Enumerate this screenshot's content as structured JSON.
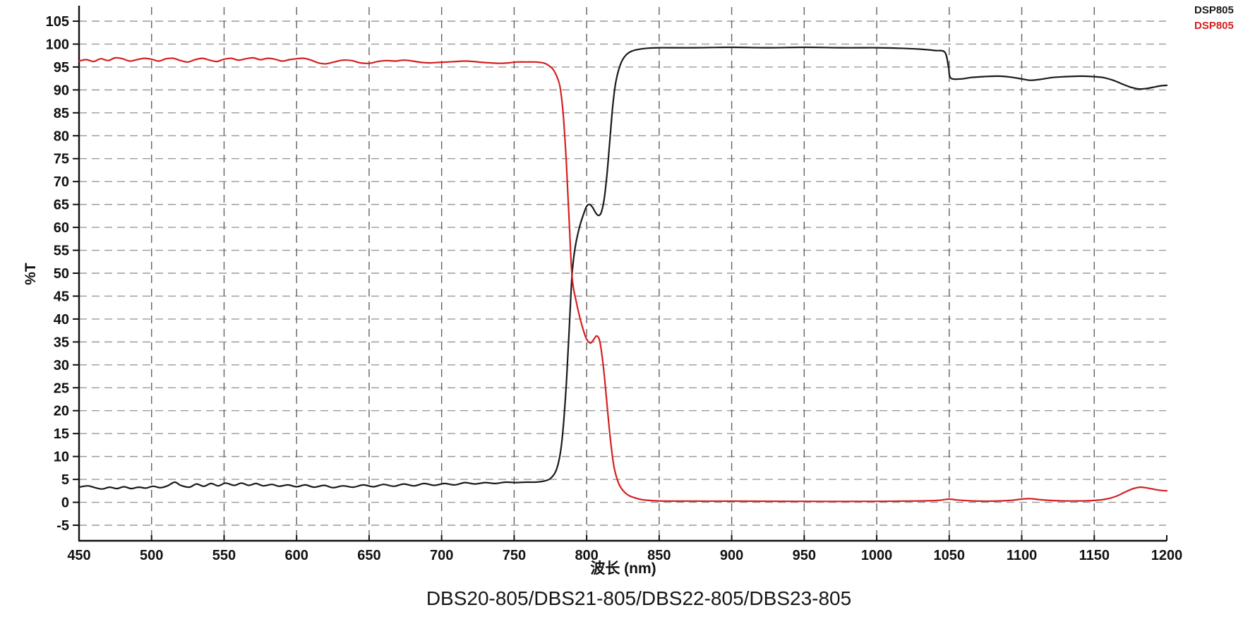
{
  "chart_data": {
    "type": "line",
    "title": "DBS20-805/DBS21-805/DBS22-805/DBS23-805",
    "xlabel": "波长 (nm)",
    "ylabel": "%T",
    "xlim": [
      450,
      1200
    ],
    "ylim": [
      -5,
      105
    ],
    "x_ticks": [
      450,
      500,
      550,
      600,
      650,
      700,
      750,
      800,
      850,
      900,
      950,
      1000,
      1050,
      1100,
      1150,
      1200
    ],
    "y_ticks": [
      105,
      100,
      95,
      90,
      85,
      80,
      75,
      70,
      65,
      60,
      55,
      50,
      45,
      40,
      35,
      30,
      25,
      20,
      15,
      10,
      5,
      0,
      -5
    ],
    "grid": "dashed",
    "grid_color_horizontal": "#9a9a9a",
    "grid_color_vertical": "#616161",
    "axis_color": "#111111",
    "legend": {
      "position": "top-right",
      "entries": [
        {
          "label": "DSP805",
          "color": "#1a1a1a"
        },
        {
          "label": "DSP805",
          "color": "#d42020"
        }
      ]
    },
    "series": [
      {
        "name": "DSP805",
        "color": "#1a1a1a",
        "points": [
          [
            450,
            3.3
          ],
          [
            456,
            3.6
          ],
          [
            461,
            3.2
          ],
          [
            466,
            2.9
          ],
          [
            471,
            3.3
          ],
          [
            476,
            3.0
          ],
          [
            481,
            3.4
          ],
          [
            486,
            3.0
          ],
          [
            491,
            3.3
          ],
          [
            496,
            3.1
          ],
          [
            501,
            3.5
          ],
          [
            506,
            3.2
          ],
          [
            511,
            3.6
          ],
          [
            516,
            4.4
          ],
          [
            520,
            3.7
          ],
          [
            526,
            3.3
          ],
          [
            531,
            4.0
          ],
          [
            536,
            3.5
          ],
          [
            541,
            4.1
          ],
          [
            546,
            3.6
          ],
          [
            551,
            4.2
          ],
          [
            557,
            3.7
          ],
          [
            562,
            4.2
          ],
          [
            567,
            3.7
          ],
          [
            572,
            4.1
          ],
          [
            577,
            3.6
          ],
          [
            583,
            3.9
          ],
          [
            588,
            3.5
          ],
          [
            594,
            3.8
          ],
          [
            600,
            3.4
          ],
          [
            606,
            3.8
          ],
          [
            612,
            3.3
          ],
          [
            619,
            3.7
          ],
          [
            625,
            3.2
          ],
          [
            632,
            3.6
          ],
          [
            639,
            3.3
          ],
          [
            646,
            3.8
          ],
          [
            653,
            3.4
          ],
          [
            660,
            3.9
          ],
          [
            667,
            3.5
          ],
          [
            674,
            4.0
          ],
          [
            681,
            3.6
          ],
          [
            688,
            4.1
          ],
          [
            695,
            3.7
          ],
          [
            702,
            4.1
          ],
          [
            709,
            3.8
          ],
          [
            716,
            4.3
          ],
          [
            723,
            4.0
          ],
          [
            730,
            4.3
          ],
          [
            737,
            4.1
          ],
          [
            744,
            4.4
          ],
          [
            751,
            4.3
          ],
          [
            758,
            4.4
          ],
          [
            764,
            4.4
          ],
          [
            770,
            4.6
          ],
          [
            775,
            5.2
          ],
          [
            779,
            7
          ],
          [
            782,
            11
          ],
          [
            784,
            17
          ],
          [
            786,
            26
          ],
          [
            788,
            38
          ],
          [
            790,
            50
          ],
          [
            792,
            55.5
          ],
          [
            795,
            60
          ],
          [
            798,
            63
          ],
          [
            800,
            64.6
          ],
          [
            802,
            65
          ],
          [
            804,
            64.4
          ],
          [
            806,
            63.3
          ],
          [
            808,
            62.6
          ],
          [
            810,
            63.2
          ],
          [
            812,
            66
          ],
          [
            814,
            71.5
          ],
          [
            816,
            79
          ],
          [
            818,
            86.5
          ],
          [
            820,
            91.5
          ],
          [
            823,
            95.3
          ],
          [
            826,
            97.2
          ],
          [
            830,
            98.3
          ],
          [
            835,
            98.8
          ],
          [
            842,
            99.1
          ],
          [
            850,
            99.2
          ],
          [
            875,
            99.2
          ],
          [
            900,
            99.3
          ],
          [
            925,
            99.2
          ],
          [
            950,
            99.3
          ],
          [
            975,
            99.2
          ],
          [
            1000,
            99.2
          ],
          [
            1015,
            99.1
          ],
          [
            1030,
            98.9
          ],
          [
            1040,
            98.6
          ],
          [
            1047,
            98.2
          ],
          [
            1049.5,
            95
          ],
          [
            1051,
            92.6
          ],
          [
            1058,
            92.4
          ],
          [
            1065,
            92.7
          ],
          [
            1074,
            92.9
          ],
          [
            1084,
            93.0
          ],
          [
            1092,
            92.8
          ],
          [
            1100,
            92.4
          ],
          [
            1106,
            92.1
          ],
          [
            1113,
            92.3
          ],
          [
            1121,
            92.7
          ],
          [
            1131,
            92.9
          ],
          [
            1141,
            93.0
          ],
          [
            1149,
            92.9
          ],
          [
            1156,
            92.7
          ],
          [
            1163,
            92.1
          ],
          [
            1170,
            91.2
          ],
          [
            1176,
            90.5
          ],
          [
            1181,
            90.2
          ],
          [
            1186,
            90.3
          ],
          [
            1191,
            90.6
          ],
          [
            1196,
            90.9
          ],
          [
            1200,
            91.0
          ]
        ]
      },
      {
        "name": "DSP805",
        "color": "#d42020",
        "points": [
          [
            450,
            96.3
          ],
          [
            455,
            96.6
          ],
          [
            460,
            96.2
          ],
          [
            465,
            96.8
          ],
          [
            470,
            96.4
          ],
          [
            475,
            97.0
          ],
          [
            480,
            96.8
          ],
          [
            485,
            96.3
          ],
          [
            490,
            96.6
          ],
          [
            495,
            96.9
          ],
          [
            500,
            96.7
          ],
          [
            505,
            96.3
          ],
          [
            510,
            96.8
          ],
          [
            515,
            96.9
          ],
          [
            520,
            96.4
          ],
          [
            525,
            96.1
          ],
          [
            530,
            96.6
          ],
          [
            535,
            96.9
          ],
          [
            540,
            96.5
          ],
          [
            545,
            96.2
          ],
          [
            550,
            96.7
          ],
          [
            555,
            96.9
          ],
          [
            560,
            96.5
          ],
          [
            565,
            96.8
          ],
          [
            570,
            97.0
          ],
          [
            575,
            96.6
          ],
          [
            580,
            96.9
          ],
          [
            585,
            96.7
          ],
          [
            590,
            96.3
          ],
          [
            595,
            96.6
          ],
          [
            600,
            96.8
          ],
          [
            605,
            96.9
          ],
          [
            610,
            96.5
          ],
          [
            615,
            95.9
          ],
          [
            620,
            95.7
          ],
          [
            626,
            96.1
          ],
          [
            632,
            96.5
          ],
          [
            638,
            96.4
          ],
          [
            644,
            95.9
          ],
          [
            650,
            95.8
          ],
          [
            656,
            96.2
          ],
          [
            662,
            96.4
          ],
          [
            668,
            96.3
          ],
          [
            674,
            96.5
          ],
          [
            680,
            96.3
          ],
          [
            686,
            96.0
          ],
          [
            692,
            95.9
          ],
          [
            698,
            96.0
          ],
          [
            704,
            96.1
          ],
          [
            710,
            96.2
          ],
          [
            716,
            96.3
          ],
          [
            722,
            96.2
          ],
          [
            728,
            96.0
          ],
          [
            734,
            95.9
          ],
          [
            740,
            95.8
          ],
          [
            746,
            95.9
          ],
          [
            752,
            96.1
          ],
          [
            758,
            96.1
          ],
          [
            764,
            96.1
          ],
          [
            770,
            95.9
          ],
          [
            774,
            95.3
          ],
          [
            777,
            94.4
          ],
          [
            780,
            92.5
          ],
          [
            782,
            90
          ],
          [
            784,
            84
          ],
          [
            786,
            74
          ],
          [
            788,
            61
          ],
          [
            790,
            49
          ],
          [
            793,
            43.5
          ],
          [
            796,
            39.5
          ],
          [
            799,
            36.3
          ],
          [
            801,
            35.1
          ],
          [
            803,
            34.8
          ],
          [
            805,
            35.6
          ],
          [
            807,
            36.3
          ],
          [
            809,
            35.2
          ],
          [
            811,
            31
          ],
          [
            813,
            25
          ],
          [
            815,
            18
          ],
          [
            817,
            12
          ],
          [
            819,
            7.5
          ],
          [
            822,
            4.2
          ],
          [
            825,
            2.6
          ],
          [
            829,
            1.5
          ],
          [
            834,
            0.9
          ],
          [
            840,
            0.5
          ],
          [
            850,
            0.3
          ],
          [
            875,
            0.25
          ],
          [
            900,
            0.25
          ],
          [
            950,
            0.2
          ],
          [
            1000,
            0.2
          ],
          [
            1030,
            0.3
          ],
          [
            1042,
            0.4
          ],
          [
            1047,
            0.6
          ],
          [
            1050,
            0.7
          ],
          [
            1056,
            0.5
          ],
          [
            1066,
            0.3
          ],
          [
            1080,
            0.25
          ],
          [
            1092,
            0.4
          ],
          [
            1100,
            0.7
          ],
          [
            1106,
            0.8
          ],
          [
            1112,
            0.6
          ],
          [
            1120,
            0.4
          ],
          [
            1130,
            0.3
          ],
          [
            1140,
            0.3
          ],
          [
            1150,
            0.4
          ],
          [
            1158,
            0.7
          ],
          [
            1165,
            1.3
          ],
          [
            1171,
            2.2
          ],
          [
            1177,
            3.0
          ],
          [
            1182,
            3.3
          ],
          [
            1187,
            3.1
          ],
          [
            1192,
            2.8
          ],
          [
            1196,
            2.6
          ],
          [
            1200,
            2.5
          ]
        ]
      }
    ]
  }
}
